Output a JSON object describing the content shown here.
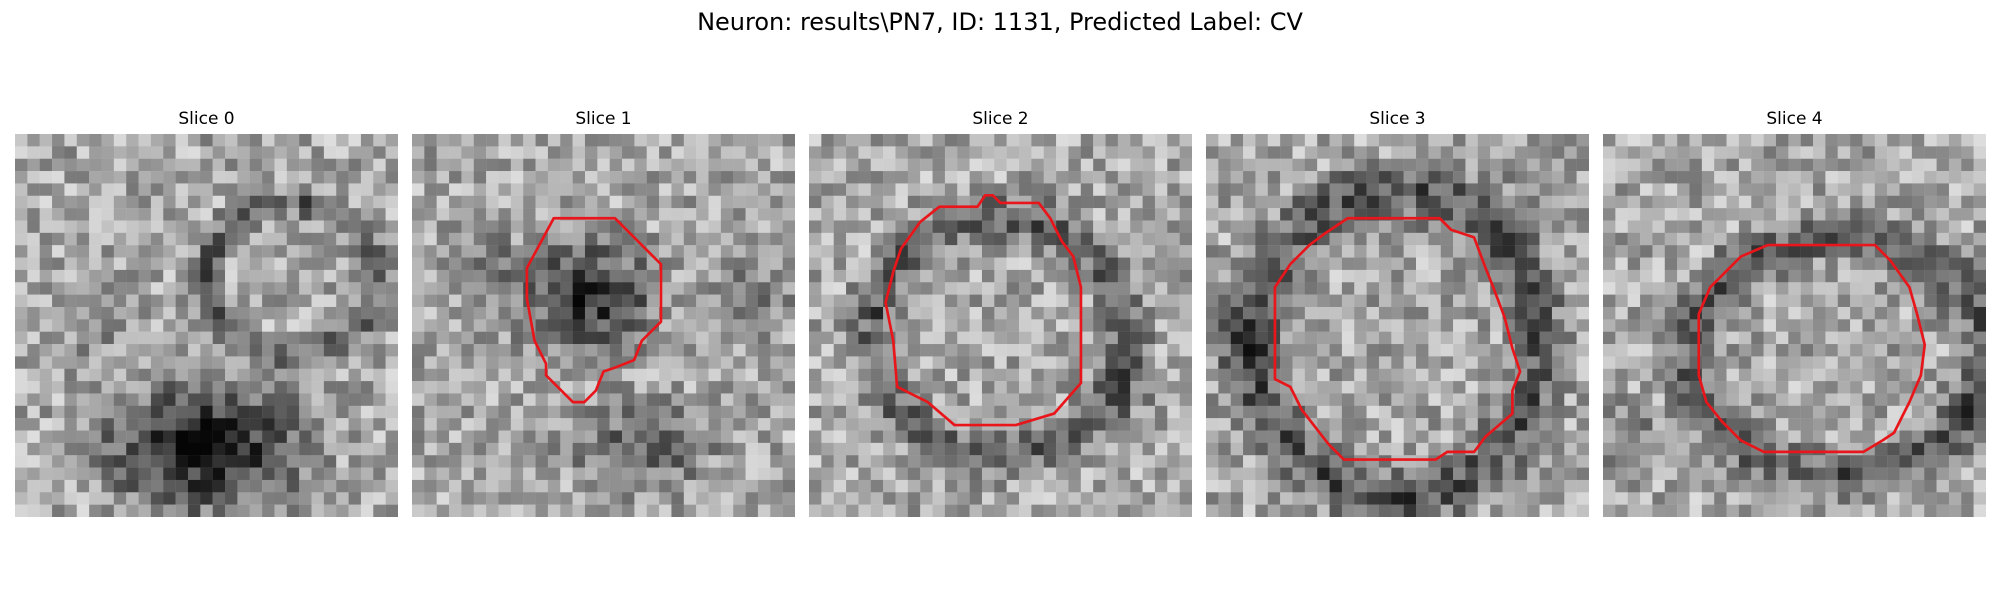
{
  "figure": {
    "title": "Neuron: results\\PN7, ID: 1131, Predicted Label: CV",
    "contour_color": "#e8161b"
  },
  "slices": [
    {
      "title": "Slice 0",
      "has_contour": false
    },
    {
      "title": "Slice 1",
      "has_contour": true
    },
    {
      "title": "Slice 2",
      "has_contour": true
    },
    {
      "title": "Slice 3",
      "has_contour": true
    },
    {
      "title": "Slice 4",
      "has_contour": true
    }
  ]
}
